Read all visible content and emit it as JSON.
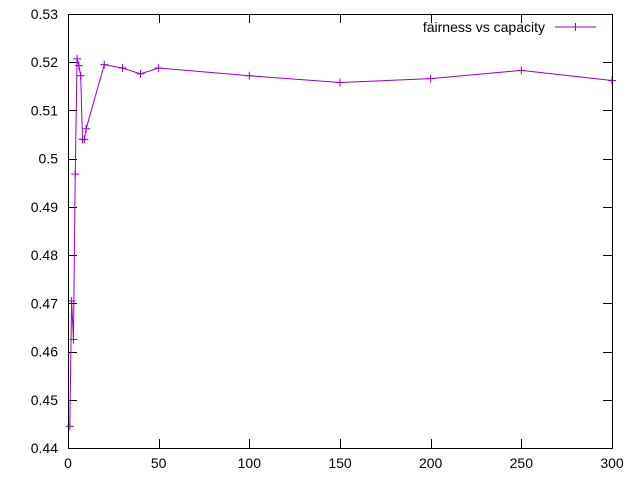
{
  "chart_data": {
    "type": "line",
    "title": "",
    "xlabel": "",
    "ylabel": "",
    "xlim": [
      0,
      300
    ],
    "ylim": [
      0.44,
      0.53
    ],
    "xticks": [
      0,
      50,
      100,
      150,
      200,
      250,
      300
    ],
    "yticks": [
      0.44,
      0.45,
      0.46,
      0.47,
      0.48,
      0.49,
      0.5,
      0.51,
      0.52,
      0.53
    ],
    "xtick_labels": [
      "0",
      "50",
      "100",
      "150",
      "200",
      "250",
      "300"
    ],
    "ytick_labels": [
      "0.44",
      "0.45",
      "0.46",
      "0.47",
      "0.48",
      "0.49",
      "0.5",
      "0.51",
      "0.52",
      "0.53"
    ],
    "grid": false,
    "legend_position": "top-right",
    "series": [
      {
        "name": "fairness vs capacity",
        "color": "#9400d3",
        "marker": "plus",
        "x": [
          1,
          2,
          3,
          4,
          5,
          6,
          7,
          8,
          9,
          10,
          20,
          30,
          40,
          50,
          100,
          150,
          200,
          250,
          300
        ],
        "y": [
          0.4445,
          0.4705,
          0.4625,
          0.4968,
          0.5207,
          0.5193,
          0.5172,
          0.504,
          0.504,
          0.5062,
          0.5195,
          0.5188,
          0.5176,
          0.5188,
          0.5172,
          0.5158,
          0.5166,
          0.5183,
          0.5162
        ]
      }
    ]
  }
}
